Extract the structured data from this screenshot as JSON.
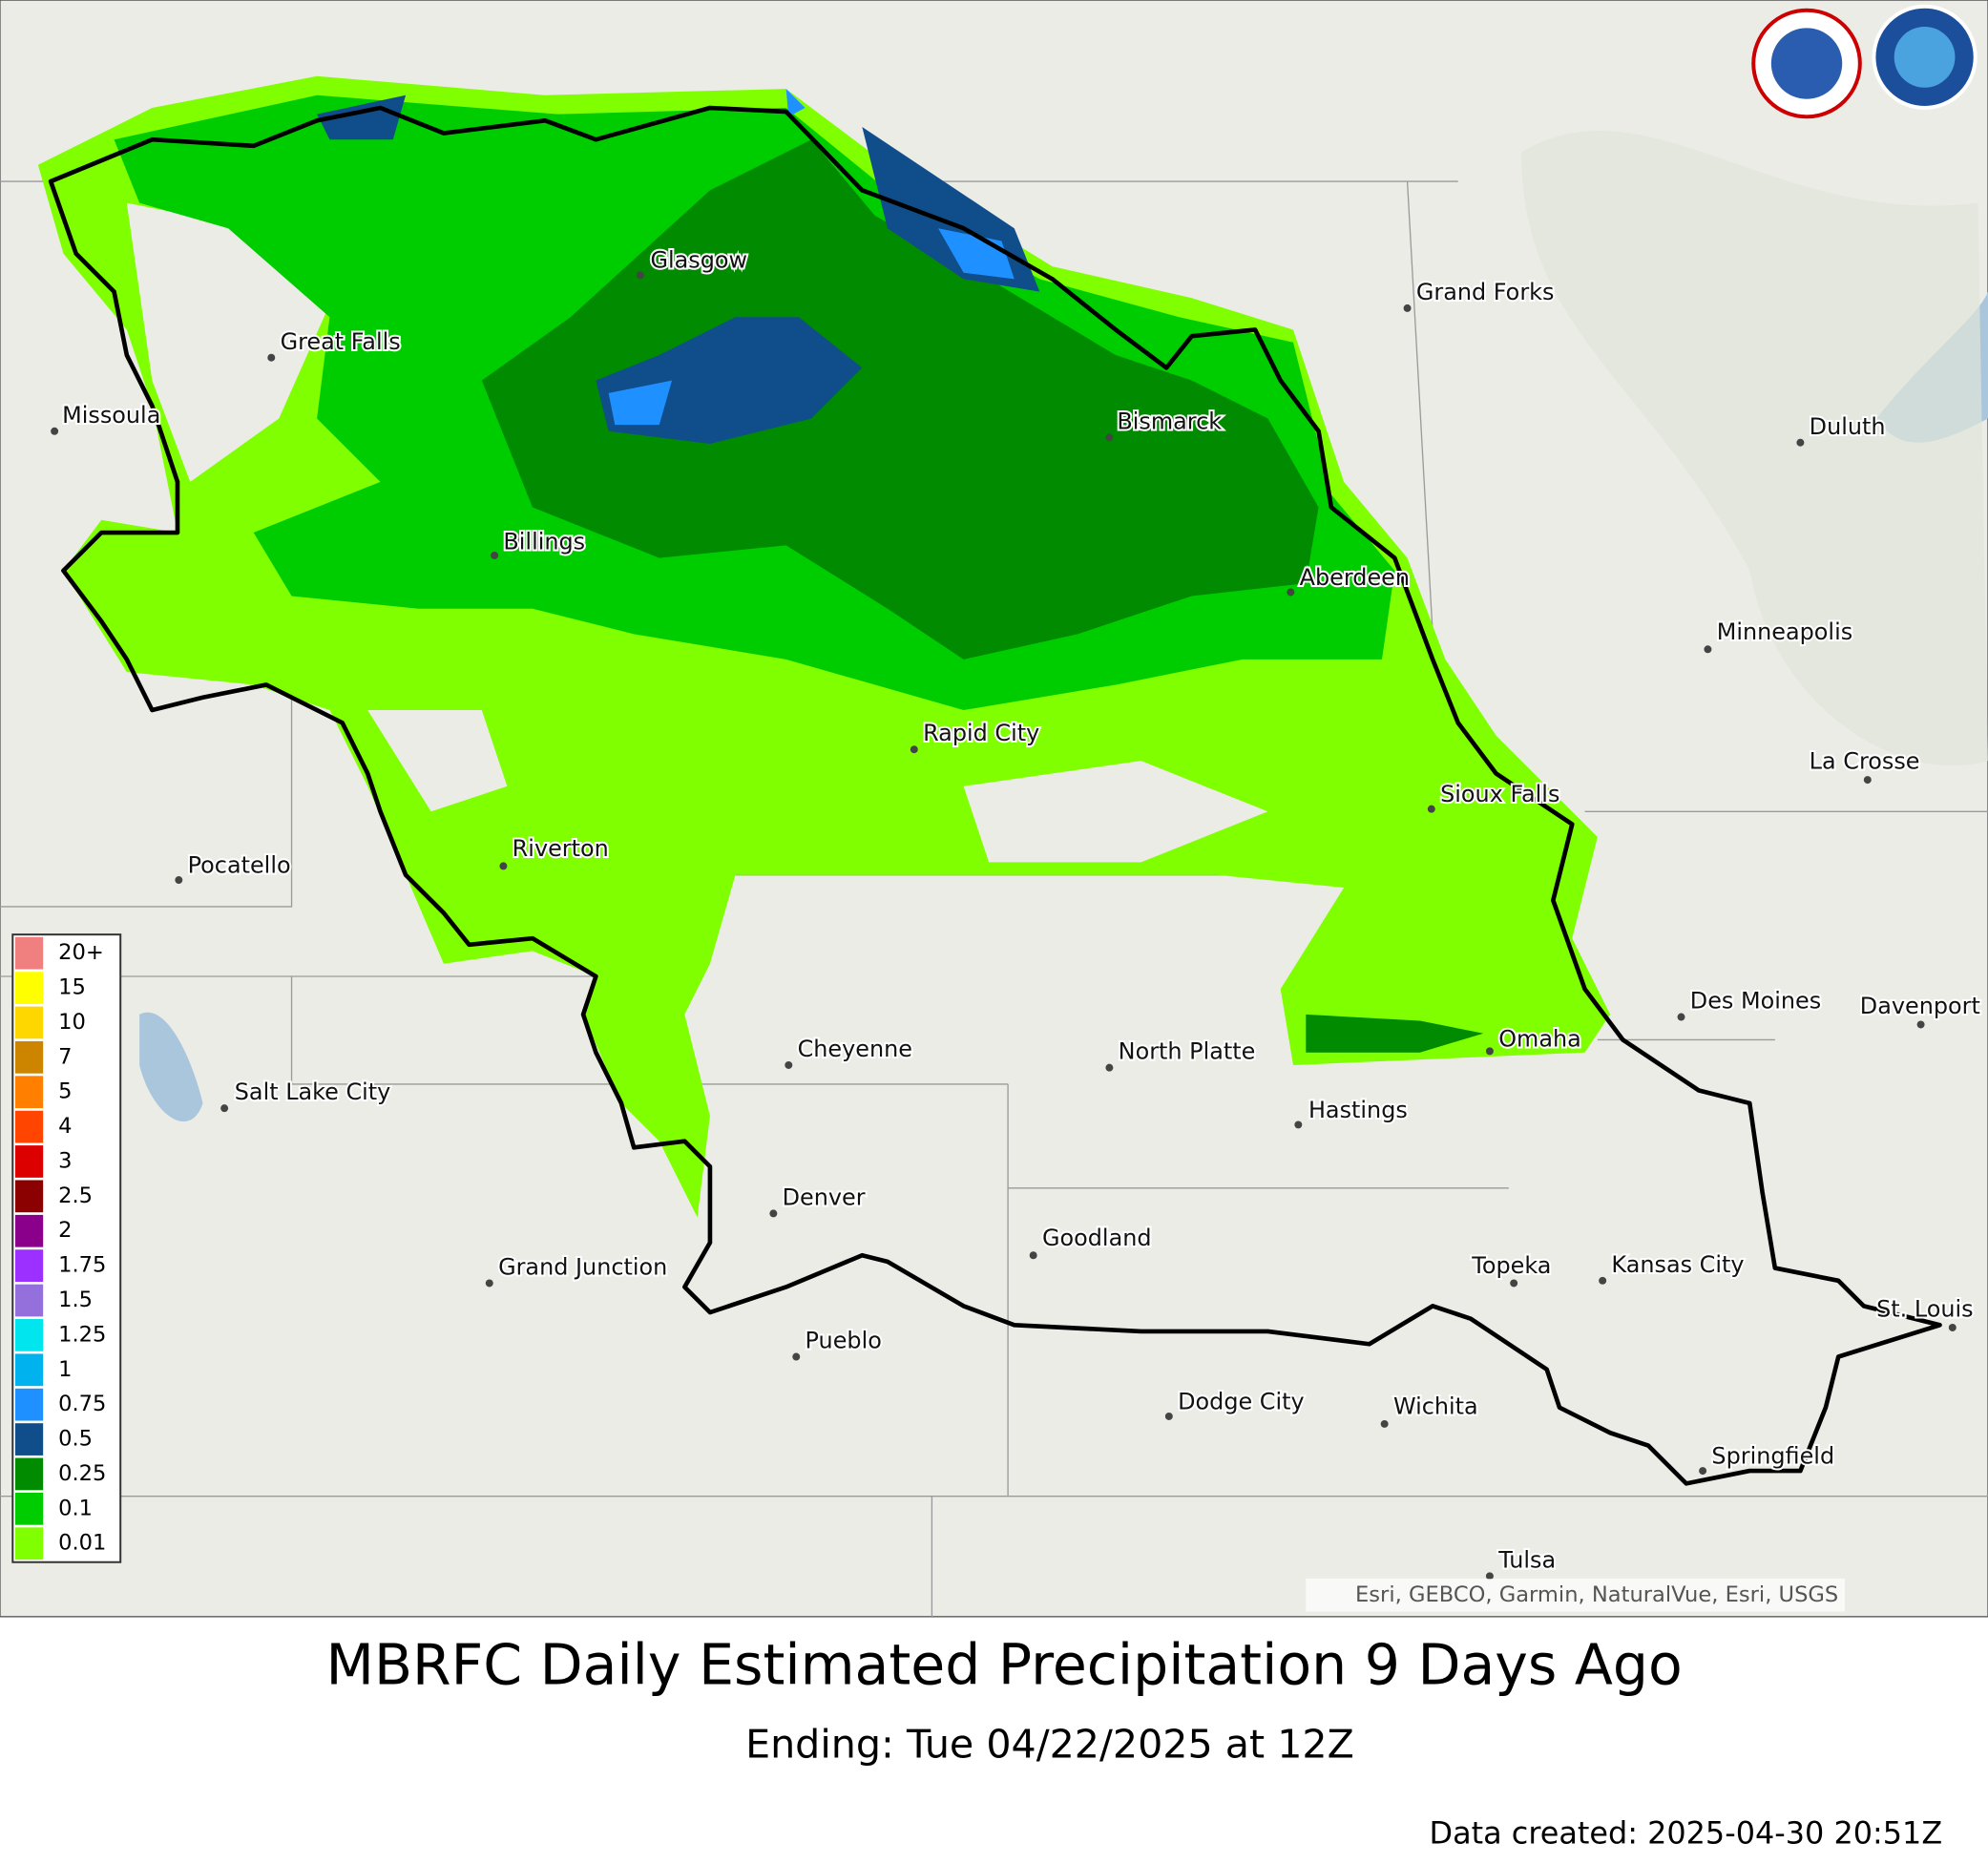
{
  "map": {
    "cities": [
      "Glasgow",
      "Great Falls",
      "Missoula",
      "Billings",
      "Grand Forks",
      "Bismarck",
      "Duluth",
      "Aberdeen",
      "Minneapolis",
      "Rapid City",
      "La Crosse",
      "Sioux Falls",
      "Riverton",
      "Pocatello",
      "Des Moines",
      "Davenport",
      "Omaha",
      "Cheyenne",
      "North Platte",
      "Salt Lake City",
      "Hastings",
      "Denver",
      "Goodland",
      "Grand Junction",
      "Topeka",
      "Kansas City",
      "St. Louis",
      "Pueblo",
      "Dodge City",
      "Wichita",
      "Springfield",
      "Tulsa"
    ],
    "legend": [
      {
        "label": "20+",
        "color": "#f08080"
      },
      {
        "label": "15",
        "color": "#ffff00"
      },
      {
        "label": "10",
        "color": "#ffd700"
      },
      {
        "label": "7",
        "color": "#cd8500"
      },
      {
        "label": "5",
        "color": "#ff7f00"
      },
      {
        "label": "4",
        "color": "#ff4500"
      },
      {
        "label": "3",
        "color": "#dd0000"
      },
      {
        "label": "2.5",
        "color": "#8b0000"
      },
      {
        "label": "2",
        "color": "#8b008b"
      },
      {
        "label": "1.75",
        "color": "#9b30ff"
      },
      {
        "label": "1.5",
        "color": "#9370db"
      },
      {
        "label": "1.25",
        "color": "#00e5ee"
      },
      {
        "label": "1",
        "color": "#00b2ee"
      },
      {
        "label": "0.75",
        "color": "#1e90ff"
      },
      {
        "label": "0.5",
        "color": "#104e8b"
      },
      {
        "label": "0.25",
        "color": "#008b00"
      },
      {
        "label": "0.1",
        "color": "#00cd00"
      },
      {
        "label": "0.01",
        "color": "#7fff00"
      }
    ],
    "attribution": "Esri, GEBCO, Garmin, NaturalVue, Esri, USGS"
  },
  "footer": {
    "title": "MBRFC Daily Estimated Precipitation 9 Days Ago",
    "subtitle": "Ending: Tue 04/22/2025 at 12Z",
    "created": "Data created: 2025-04-30 20:51Z"
  }
}
